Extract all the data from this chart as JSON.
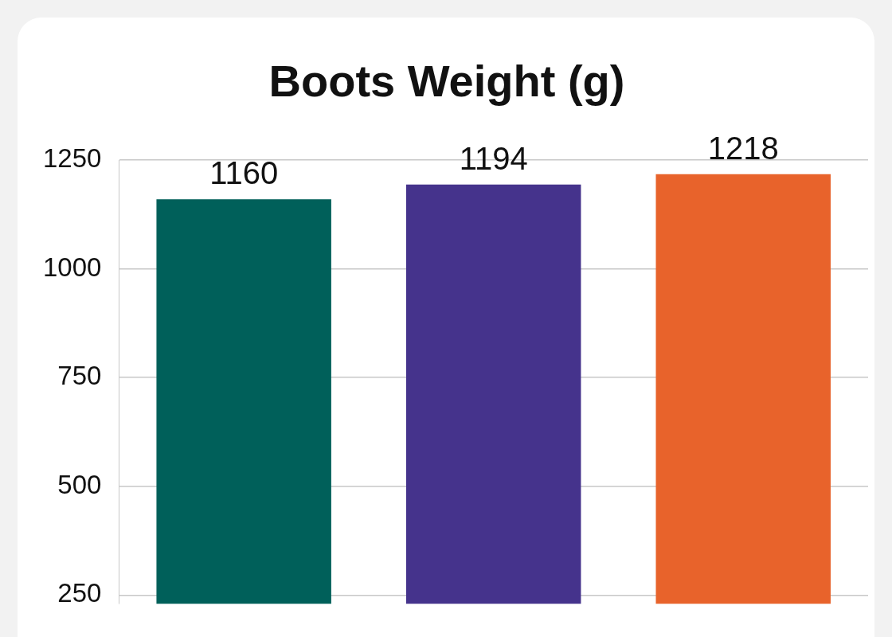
{
  "chart_data": {
    "type": "bar",
    "title": "Boots Weight (g)",
    "categories": [
      null,
      null,
      null
    ],
    "values": [
      1160,
      1194,
      1218
    ],
    "colors": [
      "#00605a",
      "#45338c",
      "#e8632b"
    ],
    "ylim": [
      230,
      1250
    ],
    "yticks": [
      250,
      500,
      750,
      1000,
      1250
    ],
    "grid": "y",
    "legend": false,
    "data_labels": true
  }
}
